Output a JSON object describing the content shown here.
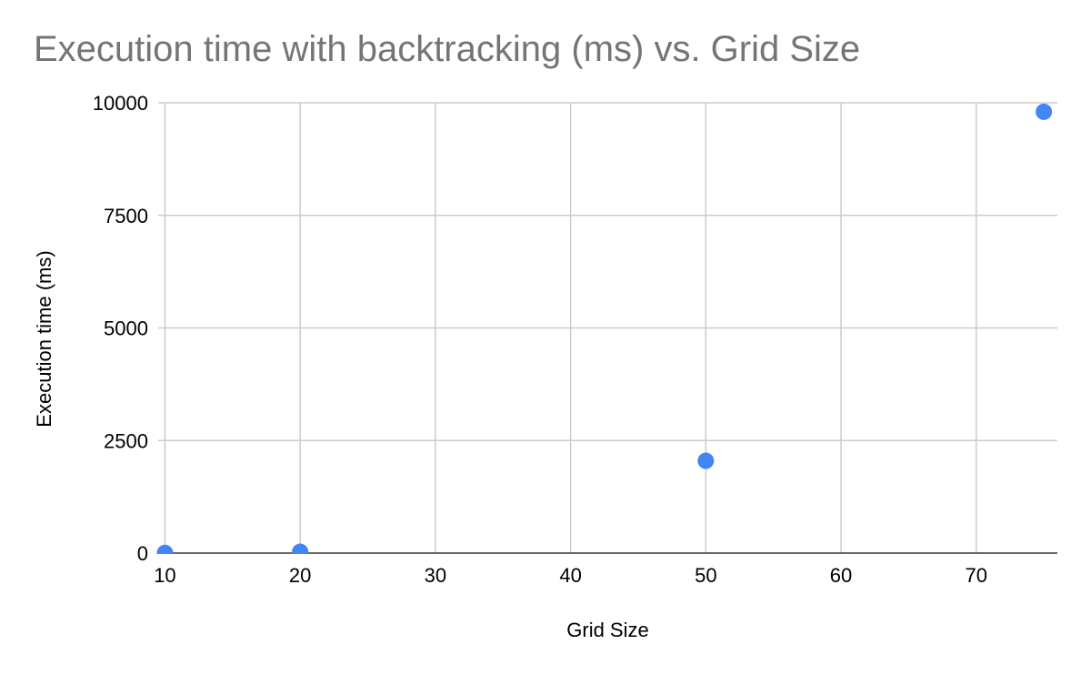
{
  "chart_data": {
    "type": "scatter",
    "title": "Execution time with backtracking (ms) vs. Grid Size",
    "xlabel": "Grid Size",
    "ylabel": "Execution time (ms)",
    "xlim": [
      9.5,
      76
    ],
    "ylim": [
      0,
      10000
    ],
    "xticks": [
      10,
      20,
      30,
      40,
      50,
      60,
      70
    ],
    "yticks": [
      0,
      2500,
      5000,
      7500,
      10000
    ],
    "grid": true,
    "legend": "none",
    "series": [
      {
        "color": "#4285f4",
        "points": [
          {
            "x": 10,
            "y": 5
          },
          {
            "x": 20,
            "y": 30
          },
          {
            "x": 50,
            "y": 2050
          },
          {
            "x": 75,
            "y": 9800
          }
        ]
      }
    ]
  }
}
